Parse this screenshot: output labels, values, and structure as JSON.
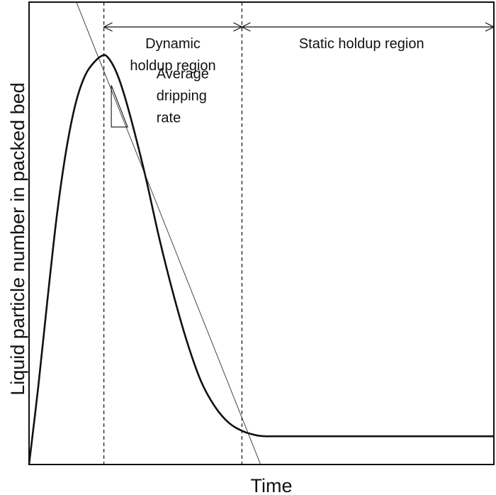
{
  "chart_data": {
    "type": "line",
    "title": "",
    "xlabel": "Time",
    "ylabel": "Liquid particle number  in packed bed",
    "xlim": [
      0,
      100
    ],
    "ylim": [
      0,
      100
    ],
    "x_ticks": [],
    "y_ticks": [],
    "grid": false,
    "legend": "none",
    "series": [
      {
        "values_x": [
          0,
          2,
          4,
          6,
          8,
          10,
          12,
          14,
          15.9,
          17,
          18.5,
          20,
          22,
          25,
          28,
          31,
          34,
          37,
          40,
          43,
          46,
          49,
          51,
          52,
          60,
          70,
          80,
          90,
          100
        ],
        "values_y": [
          0,
          17,
          36,
          54,
          68,
          78,
          84,
          87,
          88.5,
          88,
          85.5,
          81.5,
          74.5,
          62.5,
          49,
          37,
          26.5,
          18,
          12.5,
          9,
          7.2,
          6.3,
          6.1,
          6.1,
          6.1,
          6.1,
          6.1,
          6.1,
          6.1
        ]
      }
    ],
    "tangent_line": {
      "x": [
        8.6,
        50.6
      ],
      "y": [
        104,
        -2
      ]
    },
    "vertical_lines_x": [
      16.1,
      45.8
    ],
    "regions": [
      {
        "label_lines": [
          "Dynamic",
          "holdup region"
        ],
        "x": [
          16.1,
          45.8
        ]
      },
      {
        "label_lines": [
          "Static holdup  region"
        ],
        "x": [
          45.8,
          100
        ]
      }
    ],
    "slope_marker": {
      "x": [
        17.7,
        21.2
      ],
      "y": [
        82,
        73
      ]
    },
    "annotation": {
      "label_lines": [
        "Average",
        "dripping",
        "rate"
      ],
      "x": 27.4,
      "y": 83.5
    }
  },
  "colors": {
    "curve": "#111111",
    "tangent": "#333333",
    "guides": "#111111",
    "text": "#111111",
    "frame": "#111111"
  }
}
